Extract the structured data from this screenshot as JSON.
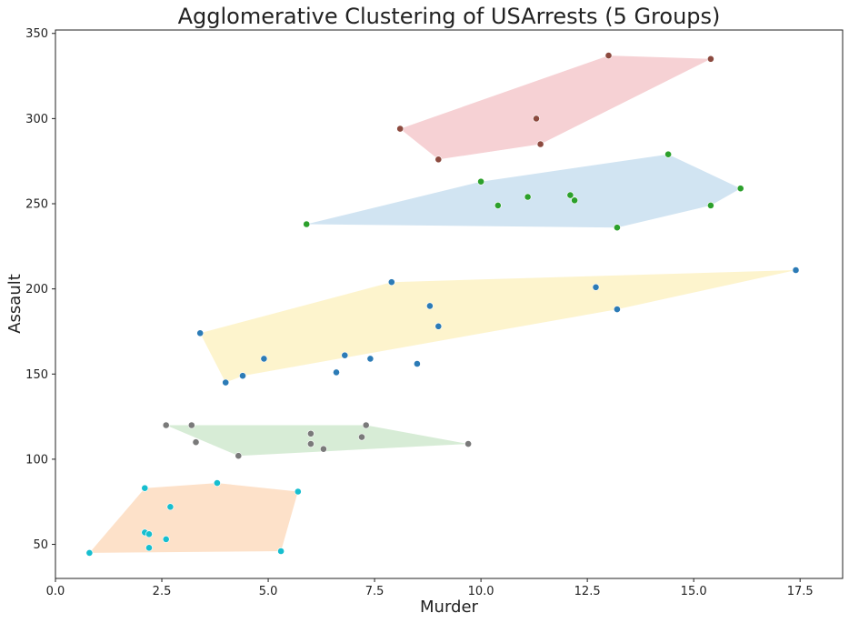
{
  "chart_data": {
    "type": "scatter",
    "title": "Agglomerative Clustering of USArrests (5 Groups)",
    "xlabel": "Murder",
    "ylabel": "Assault",
    "xlim": [
      0,
      18.5
    ],
    "ylim": [
      30,
      352
    ],
    "xticks": [
      0.0,
      2.5,
      5.0,
      7.5,
      10.0,
      12.5,
      15.0,
      17.5
    ],
    "xtick_labels": [
      "0.0",
      "2.5",
      "5.0",
      "7.5",
      "10.0",
      "12.5",
      "15.0",
      "17.5"
    ],
    "yticks": [
      50,
      100,
      150,
      200,
      250,
      300,
      350
    ],
    "ytick_labels": [
      "50",
      "100",
      "150",
      "200",
      "250",
      "300",
      "350"
    ],
    "grid": false,
    "series": [
      {
        "color": "#8c4a3f",
        "fill": "#f4c9cc",
        "points": [
          [
            8.1,
            294
          ],
          [
            9.0,
            276
          ],
          [
            11.3,
            300
          ],
          [
            11.4,
            285
          ],
          [
            13.0,
            337
          ],
          [
            15.4,
            335
          ]
        ],
        "hull": [
          [
            8.1,
            294
          ],
          [
            9.0,
            276
          ],
          [
            11.4,
            285
          ],
          [
            15.4,
            335
          ],
          [
            13.0,
            337
          ]
        ]
      },
      {
        "color": "#2ca02c",
        "fill": "#c9dff0",
        "points": [
          [
            5.9,
            238
          ],
          [
            10.0,
            263
          ],
          [
            10.4,
            249
          ],
          [
            11.1,
            254
          ],
          [
            12.1,
            255
          ],
          [
            12.2,
            252
          ],
          [
            13.2,
            236
          ],
          [
            14.4,
            279
          ],
          [
            15.4,
            249
          ],
          [
            16.1,
            259
          ]
        ],
        "hull": [
          [
            5.9,
            238
          ],
          [
            13.2,
            236
          ],
          [
            15.4,
            249
          ],
          [
            16.1,
            259
          ],
          [
            14.4,
            279
          ],
          [
            10.0,
            263
          ]
        ]
      },
      {
        "color": "#2c7bb6",
        "fill": "#fdf2c4",
        "points": [
          [
            3.4,
            174
          ],
          [
            4.0,
            145
          ],
          [
            4.4,
            149
          ],
          [
            4.9,
            159
          ],
          [
            6.6,
            151
          ],
          [
            6.8,
            161
          ],
          [
            7.4,
            159
          ],
          [
            7.9,
            204
          ],
          [
            8.5,
            156
          ],
          [
            8.8,
            190
          ],
          [
            9.0,
            178
          ],
          [
            12.7,
            201
          ],
          [
            13.2,
            188
          ],
          [
            17.4,
            211
          ]
        ],
        "hull": [
          [
            3.4,
            174
          ],
          [
            4.0,
            145
          ],
          [
            4.4,
            149
          ],
          [
            13.2,
            188
          ],
          [
            17.4,
            211
          ],
          [
            7.9,
            204
          ]
        ]
      },
      {
        "color": "#7a7a7a",
        "fill": "#d0e9cf",
        "points": [
          [
            2.6,
            120
          ],
          [
            3.2,
            120
          ],
          [
            3.3,
            110
          ],
          [
            4.3,
            102
          ],
          [
            6.0,
            115
          ],
          [
            6.0,
            109
          ],
          [
            6.3,
            106
          ],
          [
            7.2,
            113
          ],
          [
            7.3,
            120
          ],
          [
            9.7,
            109
          ]
        ],
        "hull": [
          [
            2.6,
            120
          ],
          [
            4.3,
            102
          ],
          [
            9.7,
            109
          ],
          [
            7.3,
            120
          ]
        ]
      },
      {
        "color": "#17becf",
        "fill": "#fddcc0",
        "points": [
          [
            0.8,
            45
          ],
          [
            2.1,
            83
          ],
          [
            2.1,
            57
          ],
          [
            2.2,
            56
          ],
          [
            2.2,
            48
          ],
          [
            2.6,
            53
          ],
          [
            2.7,
            72
          ],
          [
            3.8,
            86
          ],
          [
            5.3,
            46
          ],
          [
            5.7,
            81
          ]
        ],
        "hull": [
          [
            0.8,
            45
          ],
          [
            5.3,
            46
          ],
          [
            5.7,
            81
          ],
          [
            3.8,
            86
          ],
          [
            2.1,
            83
          ]
        ]
      }
    ]
  }
}
